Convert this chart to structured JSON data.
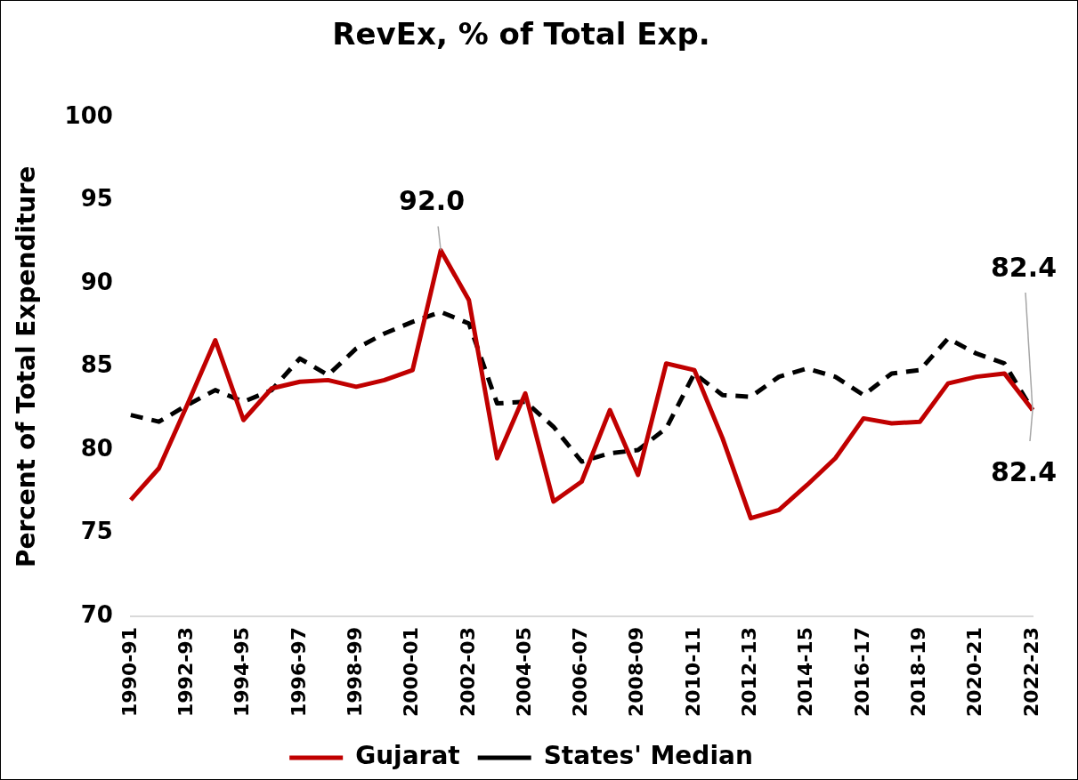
{
  "chart_data": {
    "type": "line",
    "title": "RevEx, % of Total Exp.",
    "ylabel": "Percent of Total Expenditure",
    "categories": [
      "1990-91",
      null,
      "1992-93",
      null,
      "1994-95",
      null,
      "1996-97",
      null,
      "1998-99",
      null,
      "2000-01",
      null,
      "2002-03",
      null,
      "2004-05",
      null,
      "2006-07",
      null,
      "2008-09",
      null,
      "2010-11",
      null,
      "2012-13",
      null,
      "2014-15",
      null,
      "2016-17",
      null,
      "2018-19",
      null,
      "2020-21",
      null,
      "2022-23"
    ],
    "ylim": [
      70,
      100
    ],
    "yticks": [
      70,
      75,
      80,
      85,
      90,
      95,
      100
    ],
    "grid": false,
    "legend": "bottom",
    "marker": "none",
    "series": [
      {
        "name": "Gujarat",
        "color": "#c00000",
        "line_style": "solid",
        "values": [
          77.0,
          78.9,
          82.7,
          86.6,
          81.8,
          83.7,
          84.1,
          84.2,
          83.8,
          84.2,
          84.8,
          92.0,
          89.0,
          79.5,
          83.4,
          76.9,
          78.1,
          82.4,
          78.5,
          85.2,
          84.8,
          80.7,
          75.9,
          76.4,
          77.9,
          79.5,
          81.9,
          81.6,
          81.7,
          84.0,
          84.4,
          84.6,
          82.4
        ],
        "value_labels": [
          null,
          null,
          null,
          null,
          null,
          null,
          null,
          null,
          null,
          null,
          null,
          "92.0",
          null,
          null,
          null,
          null,
          null,
          null,
          null,
          null,
          null,
          null,
          null,
          null,
          null,
          null,
          null,
          null,
          null,
          null,
          null,
          null,
          "82.4"
        ]
      },
      {
        "name": "States' Median",
        "color": "#000000",
        "line_style": "dashed",
        "values": [
          82.1,
          81.7,
          82.7,
          83.6,
          82.9,
          83.6,
          85.5,
          84.5,
          86.1,
          87.0,
          87.7,
          88.3,
          87.6,
          82.8,
          82.9,
          81.4,
          79.3,
          79.8,
          80.0,
          81.3,
          84.6,
          83.3,
          83.2,
          84.4,
          84.9,
          84.4,
          83.3,
          84.6,
          84.8,
          86.7,
          85.8,
          85.2,
          82.4
        ],
        "value_labels": [
          null,
          null,
          null,
          null,
          null,
          null,
          null,
          null,
          null,
          null,
          null,
          null,
          null,
          null,
          null,
          null,
          null,
          null,
          null,
          null,
          null,
          null,
          null,
          null,
          null,
          null,
          null,
          null,
          null,
          null,
          null,
          null,
          "82.4"
        ]
      }
    ]
  }
}
